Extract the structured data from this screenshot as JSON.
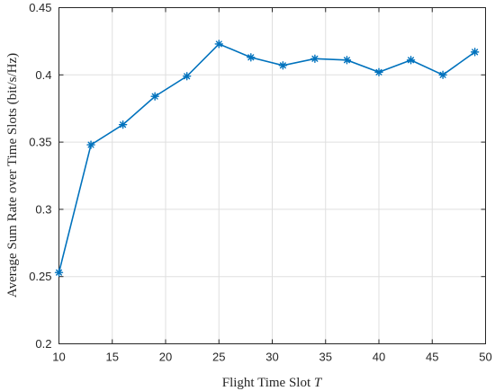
{
  "chart_data": {
    "type": "line",
    "xlabel": "Flight Time Slot",
    "xlabel_var": "T",
    "ylabel": "Average Sum Rate over Time Slots (bit/s/Hz)",
    "xlim": [
      10,
      50
    ],
    "ylim": [
      0.2,
      0.45
    ],
    "xticks": [
      10,
      15,
      20,
      25,
      30,
      35,
      40,
      45,
      50
    ],
    "yticks": [
      0.2,
      0.25,
      0.3,
      0.35,
      0.4,
      0.45
    ],
    "xtick_labels": [
      "10",
      "15",
      "20",
      "25",
      "30",
      "35",
      "40",
      "45",
      "50"
    ],
    "ytick_labels": [
      "0.2",
      "0.25",
      "0.3",
      "0.35",
      "0.4",
      "0.45"
    ],
    "grid": true,
    "marker": "asterisk",
    "color": "#0072BD",
    "series": [
      {
        "x": [
          10,
          13,
          16,
          19,
          22,
          25,
          28,
          31,
          34,
          37,
          40,
          43,
          46,
          49
        ],
        "y": [
          0.253,
          0.348,
          0.363,
          0.384,
          0.399,
          0.423,
          0.413,
          0.407,
          0.412,
          0.411,
          0.402,
          0.411,
          0.4,
          0.417
        ]
      }
    ]
  }
}
